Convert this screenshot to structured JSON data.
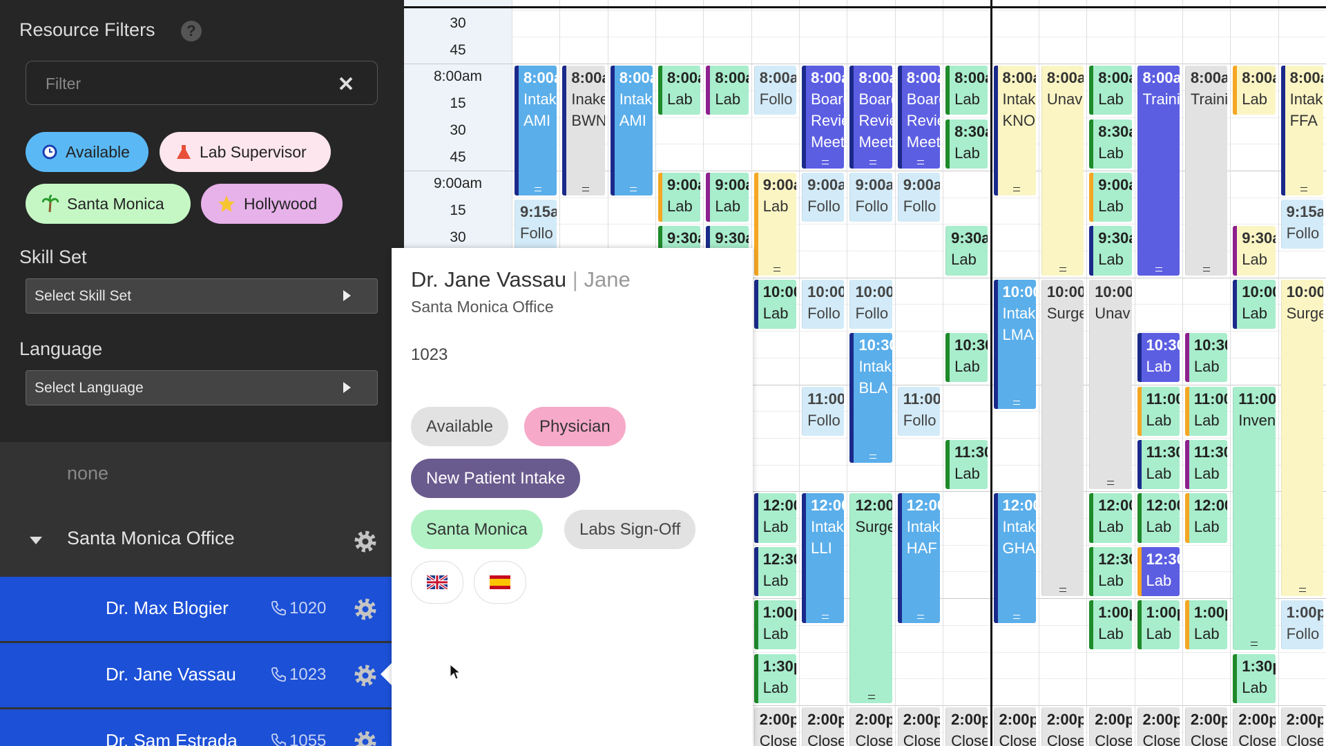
{
  "sidebar": {
    "title": "Resource Filters",
    "help": "?",
    "filter_placeholder": "Filter",
    "chips": [
      "Available",
      "Lab Supervisor",
      "Santa Monica",
      "Hollywood"
    ],
    "skill_label": "Skill Set",
    "skill_select": "Select Skill Set",
    "language_label": "Language",
    "language_select": "Select Language",
    "group_none": "none",
    "group": "Santa Monica Office",
    "resources": [
      {
        "name": "Dr. Max Blogier",
        "phone": "1020"
      },
      {
        "name": "Dr. Jane Vassau",
        "phone": "1023"
      },
      {
        "name": "Dr. Sam Estrada",
        "phone": "1055"
      }
    ]
  },
  "calendar": {
    "time_labels": [
      "30",
      "45",
      "8:00am",
      "15",
      "30",
      "45",
      "9:00am",
      "15",
      "30"
    ],
    "columns": [
      [
        {
          "time": "8:00a",
          "lines": [
            "Intak",
            "AMI"
          ]
        },
        {
          "time": "9:15a",
          "lines": [
            "Follo"
          ]
        }
      ],
      [
        {
          "time": "8:00a",
          "lines": [
            "Inake",
            "BWN"
          ]
        }
      ],
      [
        {
          "time": "8:00a",
          "lines": [
            "Intak",
            "AMI"
          ]
        }
      ],
      [
        {
          "time": "8:00a",
          "lines": [
            "Lab"
          ]
        },
        {
          "time": "9:00a",
          "lines": [
            "Lab"
          ]
        },
        {
          "time": "9:30a",
          "lines": []
        }
      ],
      [
        {
          "time": "8:00a",
          "lines": [
            "Lab"
          ]
        },
        {
          "time": "9:00a",
          "lines": [
            "Lab"
          ]
        },
        {
          "time": "9:30a",
          "lines": []
        }
      ],
      [
        {
          "time": "8:00a",
          "lines": [
            "Follo"
          ]
        },
        {
          "time": "9:00a",
          "lines": [
            "Lab"
          ]
        },
        {
          "time": "10:00",
          "lines": [
            "Lab"
          ]
        },
        {
          "time": "12:00",
          "lines": [
            "Lab"
          ]
        },
        {
          "time": "12:30",
          "lines": [
            "Lab"
          ]
        },
        {
          "time": "1:00p",
          "lines": [
            "Lab"
          ]
        },
        {
          "time": "1:30p",
          "lines": [
            "Lab"
          ]
        },
        {
          "time": "2:00p",
          "lines": [
            "Close"
          ]
        }
      ],
      [
        {
          "time": "8:00a",
          "lines": [
            "Board",
            "Revie",
            "Meet"
          ]
        },
        {
          "time": "9:00a",
          "lines": [
            "Follo"
          ]
        },
        {
          "time": "10:00",
          "lines": [
            "Follo"
          ]
        },
        {
          "time": "11:00",
          "lines": [
            "Follo"
          ]
        },
        {
          "time": "12:00",
          "lines": [
            "Intak",
            "LLI"
          ]
        },
        {
          "time": "2:00p",
          "lines": [
            "Close"
          ]
        }
      ],
      [
        {
          "time": "8:00a",
          "lines": [
            "Board",
            "Revie",
            "Meet"
          ]
        },
        {
          "time": "9:00a",
          "lines": [
            "Follo"
          ]
        },
        {
          "time": "10:00",
          "lines": [
            "Follo"
          ]
        },
        {
          "time": "10:30",
          "lines": [
            "Intak",
            "BLA"
          ]
        },
        {
          "time": "12:00",
          "lines": [
            "Surge"
          ]
        },
        {
          "time": "2:00p",
          "lines": [
            "Close"
          ]
        }
      ],
      [
        {
          "time": "8:00a",
          "lines": [
            "Board",
            "Revie",
            "Meet"
          ]
        },
        {
          "time": "9:00a",
          "lines": [
            "Follo"
          ]
        },
        {
          "time": "11:00",
          "lines": [
            "Follo"
          ]
        },
        {
          "time": "12:00",
          "lines": [
            "Intak",
            "HAF"
          ]
        },
        {
          "time": "2:00p",
          "lines": [
            "Close"
          ]
        }
      ],
      [
        {
          "time": "8:00a",
          "lines": [
            "Lab"
          ]
        },
        {
          "time": "8:30a",
          "lines": [
            "Lab"
          ]
        },
        {
          "time": "9:30a",
          "lines": [
            "Lab"
          ]
        },
        {
          "time": "10:30",
          "lines": [
            "Lab"
          ]
        },
        {
          "time": "11:30",
          "lines": [
            "Lab"
          ]
        },
        {
          "time": "2:00p",
          "lines": [
            "Close"
          ]
        }
      ],
      [
        {
          "time": "8:00a",
          "lines": [
            "Intak",
            "KNO"
          ]
        },
        {
          "time": "10:00",
          "lines": [
            "Intak",
            "LMA"
          ]
        },
        {
          "time": "12:00",
          "lines": [
            "Intak",
            "GHA"
          ]
        },
        {
          "time": "2:00p",
          "lines": [
            "Close"
          ]
        }
      ],
      [
        {
          "time": "8:00a",
          "lines": [
            "Unav"
          ]
        },
        {
          "time": "10:00",
          "lines": [
            "Surge"
          ]
        },
        {
          "time": "2:00p",
          "lines": [
            "Close"
          ]
        }
      ],
      [
        {
          "time": "8:00a",
          "lines": [
            "Lab"
          ]
        },
        {
          "time": "8:30a",
          "lines": [
            "Lab"
          ]
        },
        {
          "time": "9:00a",
          "lines": [
            "Lab"
          ]
        },
        {
          "time": "9:30a",
          "lines": [
            "Lab"
          ]
        },
        {
          "time": "10:00",
          "lines": [
            "Unav"
          ]
        },
        {
          "time": "12:00",
          "lines": [
            "Lab"
          ]
        },
        {
          "time": "12:30",
          "lines": [
            "Lab"
          ]
        },
        {
          "time": "1:00p",
          "lines": [
            "Lab"
          ]
        },
        {
          "time": "2:00p",
          "lines": [
            "Close"
          ]
        }
      ],
      [
        {
          "time": "8:00a",
          "lines": [
            "Traini"
          ]
        },
        {
          "time": "10:30",
          "lines": [
            "Lab"
          ]
        },
        {
          "time": "11:00",
          "lines": [
            "Lab"
          ]
        },
        {
          "time": "11:30",
          "lines": [
            "Lab"
          ]
        },
        {
          "time": "12:00",
          "lines": [
            "Lab"
          ]
        },
        {
          "time": "12:30",
          "lines": [
            "Lab"
          ]
        },
        {
          "time": "1:00p",
          "lines": [
            "Lab"
          ]
        },
        {
          "time": "2:00p",
          "lines": [
            "Close"
          ]
        }
      ],
      [
        {
          "time": "8:00a",
          "lines": [
            "Traini"
          ]
        },
        {
          "time": "10:30",
          "lines": [
            "Lab"
          ]
        },
        {
          "time": "11:00",
          "lines": [
            "Lab"
          ]
        },
        {
          "time": "11:30",
          "lines": [
            "Lab"
          ]
        },
        {
          "time": "12:00",
          "lines": [
            "Lab"
          ]
        },
        {
          "time": "1:00p",
          "lines": [
            "Lab"
          ]
        },
        {
          "time": "2:00p",
          "lines": [
            "Close"
          ]
        }
      ],
      [
        {
          "time": "8:00a",
          "lines": [
            "Lab"
          ]
        },
        {
          "time": "9:30a",
          "lines": [
            "Lab"
          ]
        },
        {
          "time": "10:00",
          "lines": [
            "Lab"
          ]
        },
        {
          "time": "11:00",
          "lines": [
            "Inven"
          ]
        },
        {
          "time": "1:30p",
          "lines": [
            "Lab"
          ]
        },
        {
          "time": "2:00p",
          "lines": [
            "Close"
          ]
        }
      ],
      [
        {
          "time": "8:00a",
          "lines": [
            "Intak",
            "FFA"
          ]
        },
        {
          "time": "9:15a",
          "lines": [
            "Follo"
          ]
        },
        {
          "time": "10:00",
          "lines": [
            "Surge"
          ]
        },
        {
          "time": "1:00p",
          "lines": [
            "Follo"
          ]
        },
        {
          "time": "2:00p",
          "lines": [
            "Close"
          ]
        }
      ]
    ]
  },
  "popover": {
    "name": "Dr. Jane Vassau",
    "separator": "|",
    "nickname": "Jane",
    "office": "Santa Monica Office",
    "phone": "1023",
    "tags": [
      "Available",
      "Physician",
      "New Patient Intake",
      "Santa Monica",
      "Labs Sign-Off"
    ]
  }
}
